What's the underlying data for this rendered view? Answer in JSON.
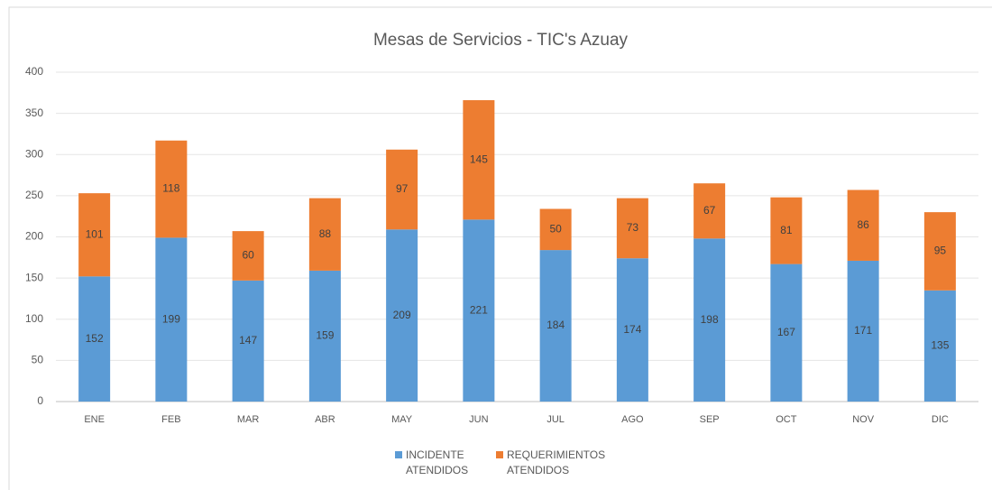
{
  "chart_data": {
    "type": "stacked_bar",
    "title": "Mesas de Servicios - TIC's Azuay",
    "categories": [
      "ENE",
      "FEB",
      "MAR",
      "ABR",
      "MAY",
      "JUN",
      "JUL",
      "AGO",
      "SEP",
      "OCT",
      "NOV",
      "DIC"
    ],
    "series": [
      {
        "name": "INCIDENTE ATENDIDOS",
        "color": "#5b9bd5",
        "values": [
          152,
          199,
          147,
          159,
          209,
          221,
          184,
          174,
          198,
          167,
          171,
          135
        ]
      },
      {
        "name": "REQUERIMIENTOS ATENDIDOS",
        "color": "#ed7d31",
        "values": [
          101,
          118,
          60,
          88,
          97,
          145,
          50,
          73,
          67,
          81,
          86,
          95
        ]
      }
    ],
    "ylim": [
      0,
      400
    ],
    "yticks": [
      0,
      50,
      100,
      150,
      200,
      250,
      300,
      350,
      400
    ],
    "grid": true,
    "legend": "bottom"
  }
}
